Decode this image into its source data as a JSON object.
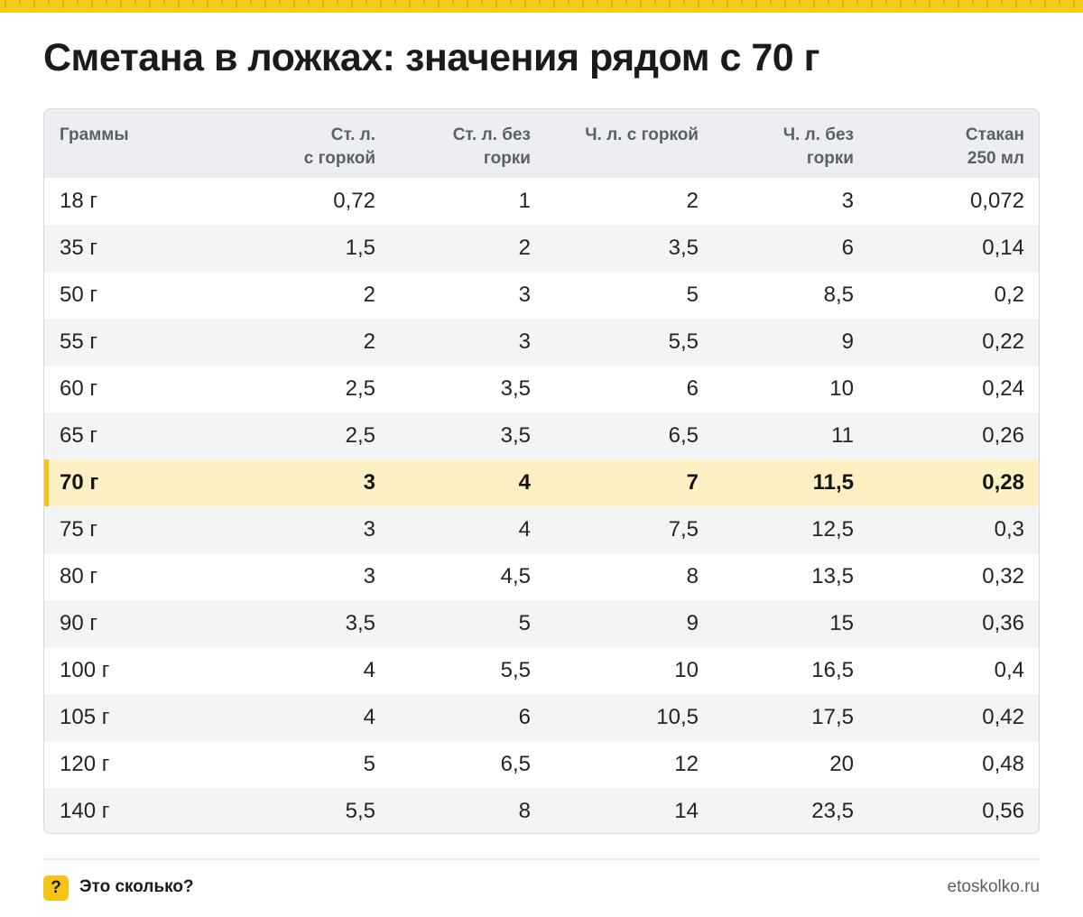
{
  "title": "Сметана в ложках: значения рядом с 70 г",
  "colors": {
    "accent": "#f6c317",
    "highlight_row": "#fdf1c3",
    "header_bg": "#eceef1"
  },
  "table": {
    "headers": [
      [
        "Граммы"
      ],
      [
        "Ст. л.",
        "с горкой"
      ],
      [
        "Ст. л. без",
        "горки"
      ],
      [
        "Ч. л. с горкой"
      ],
      [
        "Ч. л. без",
        "горки"
      ],
      [
        "Стакан",
        "250 мл"
      ]
    ],
    "highlight_grams": "70 г",
    "rows": [
      [
        "18 г",
        "0,72",
        "1",
        "2",
        "3",
        "0,072"
      ],
      [
        "35 г",
        "1,5",
        "2",
        "3,5",
        "6",
        "0,14"
      ],
      [
        "50 г",
        "2",
        "3",
        "5",
        "8,5",
        "0,2"
      ],
      [
        "55 г",
        "2",
        "3",
        "5,5",
        "9",
        "0,22"
      ],
      [
        "60 г",
        "2,5",
        "3,5",
        "6",
        "10",
        "0,24"
      ],
      [
        "65 г",
        "2,5",
        "3,5",
        "6,5",
        "11",
        "0,26"
      ],
      [
        "70 г",
        "3",
        "4",
        "7",
        "11,5",
        "0,28"
      ],
      [
        "75 г",
        "3",
        "4",
        "7,5",
        "12,5",
        "0,3"
      ],
      [
        "80 г",
        "3",
        "4,5",
        "8",
        "13,5",
        "0,32"
      ],
      [
        "90 г",
        "3,5",
        "5",
        "9",
        "15",
        "0,36"
      ],
      [
        "100 г",
        "4",
        "5,5",
        "10",
        "16,5",
        "0,4"
      ],
      [
        "105 г",
        "4",
        "6",
        "10,5",
        "17,5",
        "0,42"
      ],
      [
        "120 г",
        "5",
        "6,5",
        "12",
        "20",
        "0,48"
      ],
      [
        "140 г",
        "5,5",
        "8",
        "14",
        "23,5",
        "0,56"
      ]
    ]
  },
  "footer": {
    "icon_glyph": "?",
    "icon_name": "question-mark-icon",
    "brand": "Это сколько?",
    "site": "etoskolko.ru"
  }
}
